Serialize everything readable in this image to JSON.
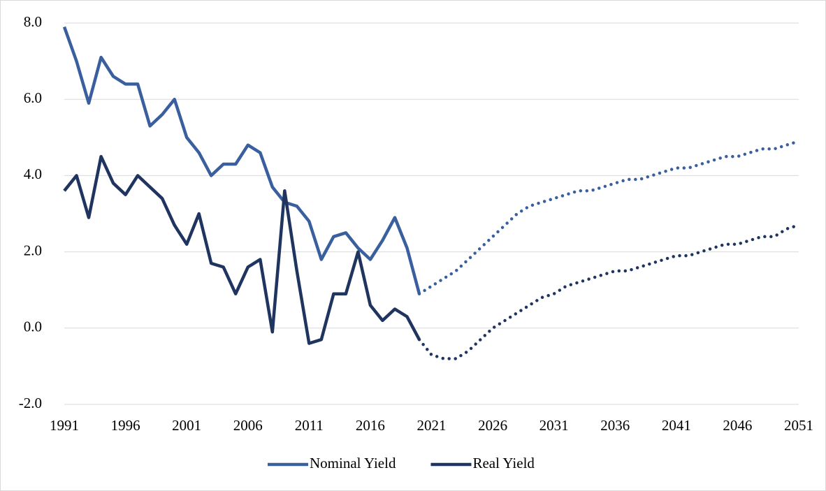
{
  "chart_data": {
    "type": "line",
    "x": [
      1991,
      1992,
      1993,
      1994,
      1995,
      1996,
      1997,
      1998,
      1999,
      2000,
      2001,
      2002,
      2003,
      2004,
      2005,
      2006,
      2007,
      2008,
      2009,
      2010,
      2011,
      2012,
      2013,
      2014,
      2015,
      2016,
      2017,
      2018,
      2019,
      2020,
      2021,
      2022,
      2023,
      2024,
      2025,
      2026,
      2027,
      2028,
      2029,
      2030,
      2031,
      2032,
      2033,
      2034,
      2035,
      2036,
      2037,
      2038,
      2039,
      2040,
      2041,
      2042,
      2043,
      2044,
      2045,
      2046,
      2047,
      2048,
      2049,
      2050,
      2051
    ],
    "series": [
      {
        "name": "Nominal Yield",
        "color": "#3a5f9f",
        "values": [
          7.9,
          7.0,
          5.9,
          7.1,
          6.6,
          6.4,
          6.4,
          5.3,
          5.6,
          6.0,
          5.0,
          4.6,
          4.0,
          4.3,
          4.3,
          4.8,
          4.6,
          3.7,
          3.3,
          3.2,
          2.8,
          1.8,
          2.4,
          2.5,
          2.1,
          1.8,
          2.3,
          2.9,
          2.1,
          0.9,
          null,
          null,
          null,
          null,
          null,
          null,
          null,
          null,
          null,
          null,
          null,
          null,
          null,
          null,
          null,
          null,
          null,
          null,
          null,
          null,
          null,
          null,
          null,
          null,
          null,
          null,
          null,
          null,
          null,
          null,
          null
        ],
        "projected": [
          null,
          null,
          null,
          null,
          null,
          null,
          null,
          null,
          null,
          null,
          null,
          null,
          null,
          null,
          null,
          null,
          null,
          null,
          null,
          null,
          null,
          null,
          null,
          null,
          null,
          null,
          null,
          null,
          null,
          0.9,
          1.1,
          1.3,
          1.5,
          1.8,
          2.1,
          2.4,
          2.7,
          3.0,
          3.2,
          3.3,
          3.4,
          3.5,
          3.6,
          3.6,
          3.7,
          3.8,
          3.9,
          3.9,
          4.0,
          4.1,
          4.2,
          4.2,
          4.3,
          4.4,
          4.5,
          4.5,
          4.6,
          4.7,
          4.7,
          4.8,
          4.9
        ]
      },
      {
        "name": "Real Yield",
        "color": "#1f3560",
        "values": [
          3.6,
          4.0,
          2.9,
          4.5,
          3.8,
          3.5,
          4.0,
          3.7,
          3.4,
          2.7,
          2.2,
          3.0,
          1.7,
          1.6,
          0.9,
          1.6,
          1.8,
          -0.1,
          3.6,
          1.5,
          -0.4,
          -0.3,
          0.9,
          0.9,
          2.0,
          0.6,
          0.2,
          0.5,
          0.3,
          -0.3,
          null,
          null,
          null,
          null,
          null,
          null,
          null,
          null,
          null,
          null,
          null,
          null,
          null,
          null,
          null,
          null,
          null,
          null,
          null,
          null,
          null,
          null,
          null,
          null,
          null,
          null,
          null,
          null,
          null,
          null,
          null
        ],
        "projected": [
          null,
          null,
          null,
          null,
          null,
          null,
          null,
          null,
          null,
          null,
          null,
          null,
          null,
          null,
          null,
          null,
          null,
          null,
          null,
          null,
          null,
          null,
          null,
          null,
          null,
          null,
          null,
          null,
          null,
          -0.3,
          -0.7,
          -0.8,
          -0.8,
          -0.6,
          -0.3,
          0.0,
          0.2,
          0.4,
          0.6,
          0.8,
          0.9,
          1.1,
          1.2,
          1.3,
          1.4,
          1.5,
          1.5,
          1.6,
          1.7,
          1.8,
          1.9,
          1.9,
          2.0,
          2.1,
          2.2,
          2.2,
          2.3,
          2.4,
          2.4,
          2.6,
          2.7
        ]
      }
    ],
    "xlim": [
      1991,
      2051
    ],
    "xticks": [
      1991,
      1996,
      2001,
      2006,
      2011,
      2016,
      2021,
      2026,
      2031,
      2036,
      2041,
      2046,
      2051
    ],
    "ylim": [
      -2,
      8
    ],
    "yticks": [
      {
        "value": -2,
        "label": "-2.0"
      },
      {
        "value": 0,
        "label": "0.0"
      },
      {
        "value": 2,
        "label": "2.0"
      },
      {
        "value": 4,
        "label": "4.0"
      },
      {
        "value": 6,
        "label": "6.0"
      },
      {
        "value": 8,
        "label": "8.0"
      }
    ],
    "grid": true,
    "legend": "bottom"
  }
}
